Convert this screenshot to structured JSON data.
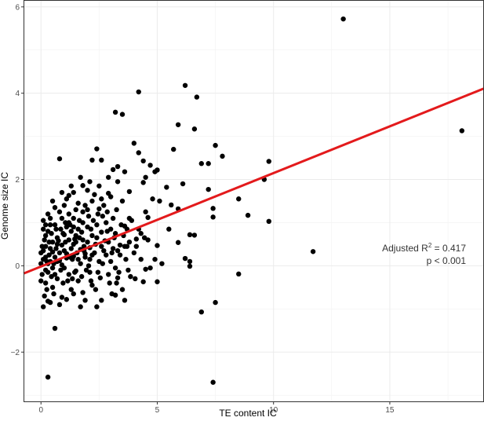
{
  "chart_data": {
    "type": "scatter",
    "title": "",
    "xlabel": "TE content IC",
    "ylabel": "Genome size IC",
    "xlim": [
      -0.75,
      19.05
    ],
    "ylim": [
      -3.16,
      6.16
    ],
    "x_ticks": [
      0,
      5,
      10,
      15
    ],
    "y_ticks": [
      -2,
      0,
      2,
      4,
      6
    ],
    "x_tick_labels": [
      "0",
      "5",
      "10",
      "15"
    ],
    "y_tick_labels": [
      "−2",
      "0",
      "2",
      "4",
      "6"
    ],
    "grid": true,
    "point_color": "#000000",
    "regression_line": {
      "color": "#e31a1c",
      "x": [
        -0.75,
        19.05
      ],
      "y": [
        -0.18,
        4.11
      ]
    },
    "annotation": {
      "line1_prefix": "Adjusted R",
      "line1_sup": "2",
      "line1_suffix": " = 0.417",
      "line2": "p < 0.001"
    },
    "points": [
      [
        13.0,
        5.72
      ],
      [
        18.1,
        3.13
      ],
      [
        4.2,
        4.03
      ],
      [
        6.2,
        4.18
      ],
      [
        6.7,
        3.91
      ],
      [
        3.2,
        3.56
      ],
      [
        3.5,
        3.51
      ],
      [
        5.9,
        3.27
      ],
      [
        6.6,
        3.17
      ],
      [
        4.0,
        2.84
      ],
      [
        7.5,
        2.79
      ],
      [
        2.4,
        2.71
      ],
      [
        5.7,
        2.7
      ],
      [
        4.2,
        2.62
      ],
      [
        7.8,
        2.54
      ],
      [
        0.8,
        2.48
      ],
      [
        2.2,
        2.45
      ],
      [
        2.6,
        2.45
      ],
      [
        4.4,
        2.43
      ],
      [
        9.8,
        2.42
      ],
      [
        6.9,
        2.37
      ],
      [
        7.2,
        2.37
      ],
      [
        4.7,
        2.33
      ],
      [
        3.1,
        2.23
      ],
      [
        5.0,
        2.22
      ],
      [
        3.6,
        2.18
      ],
      [
        4.9,
        2.18
      ],
      [
        4.5,
        2.05
      ],
      [
        9.6,
        2.0
      ],
      [
        4.4,
        1.93
      ],
      [
        1.8,
        1.86
      ],
      [
        6.1,
        1.9
      ],
      [
        5.4,
        1.82
      ],
      [
        7.2,
        1.77
      ],
      [
        3.8,
        1.72
      ],
      [
        2.9,
        1.68
      ],
      [
        8.5,
        1.55
      ],
      [
        4.8,
        1.55
      ],
      [
        1.2,
        1.63
      ],
      [
        5.1,
        1.5
      ],
      [
        5.6,
        1.41
      ],
      [
        2.5,
        1.32
      ],
      [
        7.4,
        1.33
      ],
      [
        5.9,
        1.32
      ],
      [
        8.9,
        1.17
      ],
      [
        7.4,
        1.13
      ],
      [
        4.6,
        1.12
      ],
      [
        9.8,
        1.03
      ],
      [
        3.9,
        1.05
      ],
      [
        6.4,
        0.72
      ],
      [
        6.6,
        0.71
      ],
      [
        4.3,
        0.75
      ],
      [
        5.5,
        0.85
      ],
      [
        5.9,
        0.54
      ],
      [
        5.0,
        0.47
      ],
      [
        3.7,
        0.45
      ],
      [
        4.1,
        0.62
      ],
      [
        11.7,
        0.33
      ],
      [
        6.2,
        0.17
      ],
      [
        6.4,
        0.1
      ],
      [
        4.9,
        0.15
      ],
      [
        6.4,
        -0.01
      ],
      [
        4.5,
        -0.08
      ],
      [
        8.5,
        -0.19
      ],
      [
        3.3,
        -0.28
      ],
      [
        4.4,
        -0.37
      ],
      [
        5.0,
        -0.37
      ],
      [
        3.5,
        -0.55
      ],
      [
        3.2,
        -0.68
      ],
      [
        7.5,
        -0.85
      ],
      [
        6.9,
        -1.07
      ],
      [
        1.7,
        -0.95
      ],
      [
        0.6,
        -1.45
      ],
      [
        0.3,
        -2.58
      ],
      [
        7.4,
        -2.7
      ],
      [
        0.1,
        -0.95
      ],
      [
        0.3,
        -0.82
      ],
      [
        0.9,
        -0.73
      ],
      [
        0.5,
        -0.5
      ],
      [
        1.3,
        -0.55
      ],
      [
        1.1,
        -0.78
      ],
      [
        2.6,
        -0.8
      ],
      [
        1.8,
        -0.62
      ],
      [
        2.2,
        -0.45
      ],
      [
        1.6,
        -0.35
      ],
      [
        0.2,
        -0.4
      ],
      [
        0.7,
        -0.3
      ],
      [
        2.9,
        -0.2
      ],
      [
        2.1,
        -0.15
      ],
      [
        1.5,
        -0.12
      ],
      [
        3.2,
        -0.05
      ],
      [
        0.0,
        0.05
      ],
      [
        0.4,
        0.1
      ],
      [
        0.8,
        0.12
      ],
      [
        1.1,
        0.18
      ],
      [
        1.4,
        0.22
      ],
      [
        1.9,
        0.28
      ],
      [
        2.3,
        0.3
      ],
      [
        2.7,
        0.35
      ],
      [
        3.1,
        0.4
      ],
      [
        3.4,
        0.48
      ],
      [
        0.0,
        0.3
      ],
      [
        0.2,
        0.45
      ],
      [
        0.5,
        0.55
      ],
      [
        0.7,
        0.65
      ],
      [
        1.0,
        0.72
      ],
      [
        1.3,
        0.8
      ],
      [
        1.6,
        0.85
      ],
      [
        2.0,
        0.9
      ],
      [
        2.4,
        0.95
      ],
      [
        2.8,
        1.0
      ],
      [
        0.1,
        0.85
      ],
      [
        0.4,
        0.95
      ],
      [
        0.9,
        1.1
      ],
      [
        1.2,
        1.2
      ],
      [
        1.5,
        1.3
      ],
      [
        1.9,
        1.4
      ],
      [
        2.2,
        1.5
      ],
      [
        2.6,
        1.55
      ],
      [
        3.0,
        1.6
      ],
      [
        0.3,
        1.2
      ],
      [
        0.6,
        1.35
      ],
      [
        1.1,
        1.55
      ],
      [
        1.4,
        1.7
      ],
      [
        2.0,
        1.75
      ],
      [
        2.5,
        1.85
      ],
      [
        3.3,
        1.95
      ],
      [
        0.2,
        -0.1
      ],
      [
        0.5,
        -0.05
      ],
      [
        0.9,
        0.02
      ],
      [
        1.2,
        -0.2
      ],
      [
        1.7,
        0.05
      ],
      [
        2.1,
        0.15
      ],
      [
        2.5,
        0.1
      ],
      [
        0.05,
        -0.2
      ],
      [
        0.3,
        -0.15
      ],
      [
        0.6,
        0.2
      ],
      [
        1.0,
        0.35
      ],
      [
        1.4,
        0.5
      ],
      [
        1.8,
        0.6
      ],
      [
        2.2,
        0.7
      ],
      [
        2.6,
        0.78
      ],
      [
        3.0,
        0.85
      ],
      [
        3.6,
        0.92
      ],
      [
        0.15,
        0.6
      ],
      [
        0.45,
        0.75
      ],
      [
        0.85,
        0.85
      ],
      [
        1.25,
        0.95
      ],
      [
        1.65,
        1.05
      ],
      [
        2.05,
        1.15
      ],
      [
        2.45,
        1.2
      ],
      [
        2.85,
        1.25
      ],
      [
        3.25,
        1.3
      ],
      [
        3.8,
        1.1
      ],
      [
        0.35,
        0.25
      ],
      [
        0.65,
        0.4
      ],
      [
        1.05,
        0.55
      ],
      [
        1.45,
        0.62
      ],
      [
        1.85,
        0.45
      ],
      [
        2.35,
        0.5
      ],
      [
        2.75,
        0.58
      ],
      [
        3.15,
        0.65
      ],
      [
        3.55,
        0.7
      ],
      [
        4.0,
        0.3
      ],
      [
        0.25,
        -0.55
      ],
      [
        0.55,
        -0.65
      ],
      [
        0.95,
        -0.4
      ],
      [
        1.35,
        -0.3
      ],
      [
        1.75,
        -0.25
      ],
      [
        2.15,
        -0.35
      ],
      [
        2.55,
        -0.28
      ],
      [
        2.95,
        -0.4
      ],
      [
        3.35,
        -0.15
      ],
      [
        3.75,
        -0.1
      ],
      [
        0.1,
        0.15
      ],
      [
        0.3,
        0.05
      ],
      [
        0.5,
        0.32
      ],
      [
        0.7,
        0.1
      ],
      [
        0.9,
        0.48
      ],
      [
        1.1,
        0.28
      ],
      [
        1.3,
        0.4
      ],
      [
        1.5,
        0.7
      ],
      [
        1.7,
        0.38
      ],
      [
        1.9,
        0.2
      ],
      [
        2.1,
        0.42
      ],
      [
        0.0,
        -0.35
      ],
      [
        0.2,
        0.2
      ],
      [
        0.4,
        0.4
      ],
      [
        0.6,
        -0.2
      ],
      [
        0.8,
        0.3
      ],
      [
        1.0,
        -0.05
      ],
      [
        1.2,
        0.6
      ],
      [
        1.4,
        0.9
      ],
      [
        1.6,
        0.15
      ],
      [
        1.8,
        1.0
      ],
      [
        2.0,
        0.55
      ],
      [
        2.2,
        0.25
      ],
      [
        2.4,
        0.65
      ],
      [
        2.6,
        0.45
      ],
      [
        2.8,
        0.25
      ],
      [
        3.0,
        0.1
      ],
      [
        3.2,
        0.75
      ],
      [
        3.4,
        0.25
      ],
      [
        3.6,
        0.45
      ],
      [
        3.8,
        0.55
      ],
      [
        4.2,
        0.85
      ],
      [
        4.6,
        0.6
      ],
      [
        0.1,
        1.05
      ],
      [
        0.2,
        0.7
      ],
      [
        0.4,
        1.1
      ],
      [
        0.6,
        0.95
      ],
      [
        0.8,
        1.25
      ],
      [
        1.0,
        1.4
      ],
      [
        1.2,
        1.0
      ],
      [
        1.4,
        1.1
      ],
      [
        1.6,
        1.45
      ],
      [
        1.8,
        1.25
      ],
      [
        2.0,
        1.3
      ],
      [
        2.3,
        1.65
      ],
      [
        2.7,
        1.4
      ],
      [
        3.1,
        1.1
      ],
      [
        3.5,
        1.5
      ],
      [
        0.05,
        0.45
      ],
      [
        0.15,
        -0.7
      ],
      [
        0.35,
        0.55
      ],
      [
        0.55,
        0.05
      ],
      [
        0.75,
        0.58
      ],
      [
        0.95,
        0.75
      ],
      [
        1.15,
        -0.35
      ],
      [
        1.35,
        0.15
      ],
      [
        1.55,
        0.3
      ],
      [
        1.75,
        0.78
      ],
      [
        1.95,
        -0.1
      ],
      [
        2.15,
        0.85
      ],
      [
        2.35,
        -0.55
      ],
      [
        2.65,
        0.05
      ],
      [
        3.05,
        -0.65
      ],
      [
        3.45,
        0.95
      ],
      [
        3.85,
        -0.25
      ],
      [
        4.3,
        0.15
      ],
      [
        4.7,
        -0.05
      ],
      [
        5.2,
        0.05
      ],
      [
        0.2,
        0.95
      ],
      [
        0.5,
        1.5
      ],
      [
        0.9,
        1.7
      ],
      [
        1.3,
        1.85
      ],
      [
        1.7,
        2.05
      ],
      [
        2.1,
        1.95
      ],
      [
        2.9,
        2.05
      ],
      [
        3.3,
        2.3
      ],
      [
        0.4,
        -0.85
      ],
      [
        0.8,
        -0.9
      ],
      [
        1.4,
        -0.65
      ],
      [
        1.9,
        -0.8
      ],
      [
        2.4,
        -0.95
      ],
      [
        3.6,
        -0.8
      ],
      [
        0.3,
        0.8
      ],
      [
        0.7,
        0.5
      ],
      [
        1.1,
        0.9
      ],
      [
        1.5,
        0.55
      ],
      [
        2.9,
        0.55
      ],
      [
        3.3,
        0.35
      ],
      [
        3.7,
        0.85
      ],
      [
        4.1,
        0.45
      ],
      [
        4.5,
        1.25
      ],
      [
        0.1,
        0.35
      ],
      [
        0.25,
        0.1
      ],
      [
        0.45,
        -0.25
      ],
      [
        0.65,
        0.85
      ],
      [
        0.85,
        -0.1
      ],
      [
        1.05,
        1.0
      ],
      [
        1.25,
        0.2
      ],
      [
        1.45,
        -0.15
      ],
      [
        1.65,
        0.65
      ],
      [
        1.85,
        0.35
      ],
      [
        2.05,
        0.0
      ],
      [
        2.25,
        1.05
      ],
      [
        2.45,
        -0.15
      ],
      [
        2.65,
        1.15
      ],
      [
        2.85,
        0.8
      ],
      [
        3.05,
        0.3
      ],
      [
        3.25,
        -0.4
      ],
      [
        3.65,
        0.15
      ],
      [
        4.05,
        -0.3
      ],
      [
        4.45,
        0.65
      ]
    ]
  }
}
